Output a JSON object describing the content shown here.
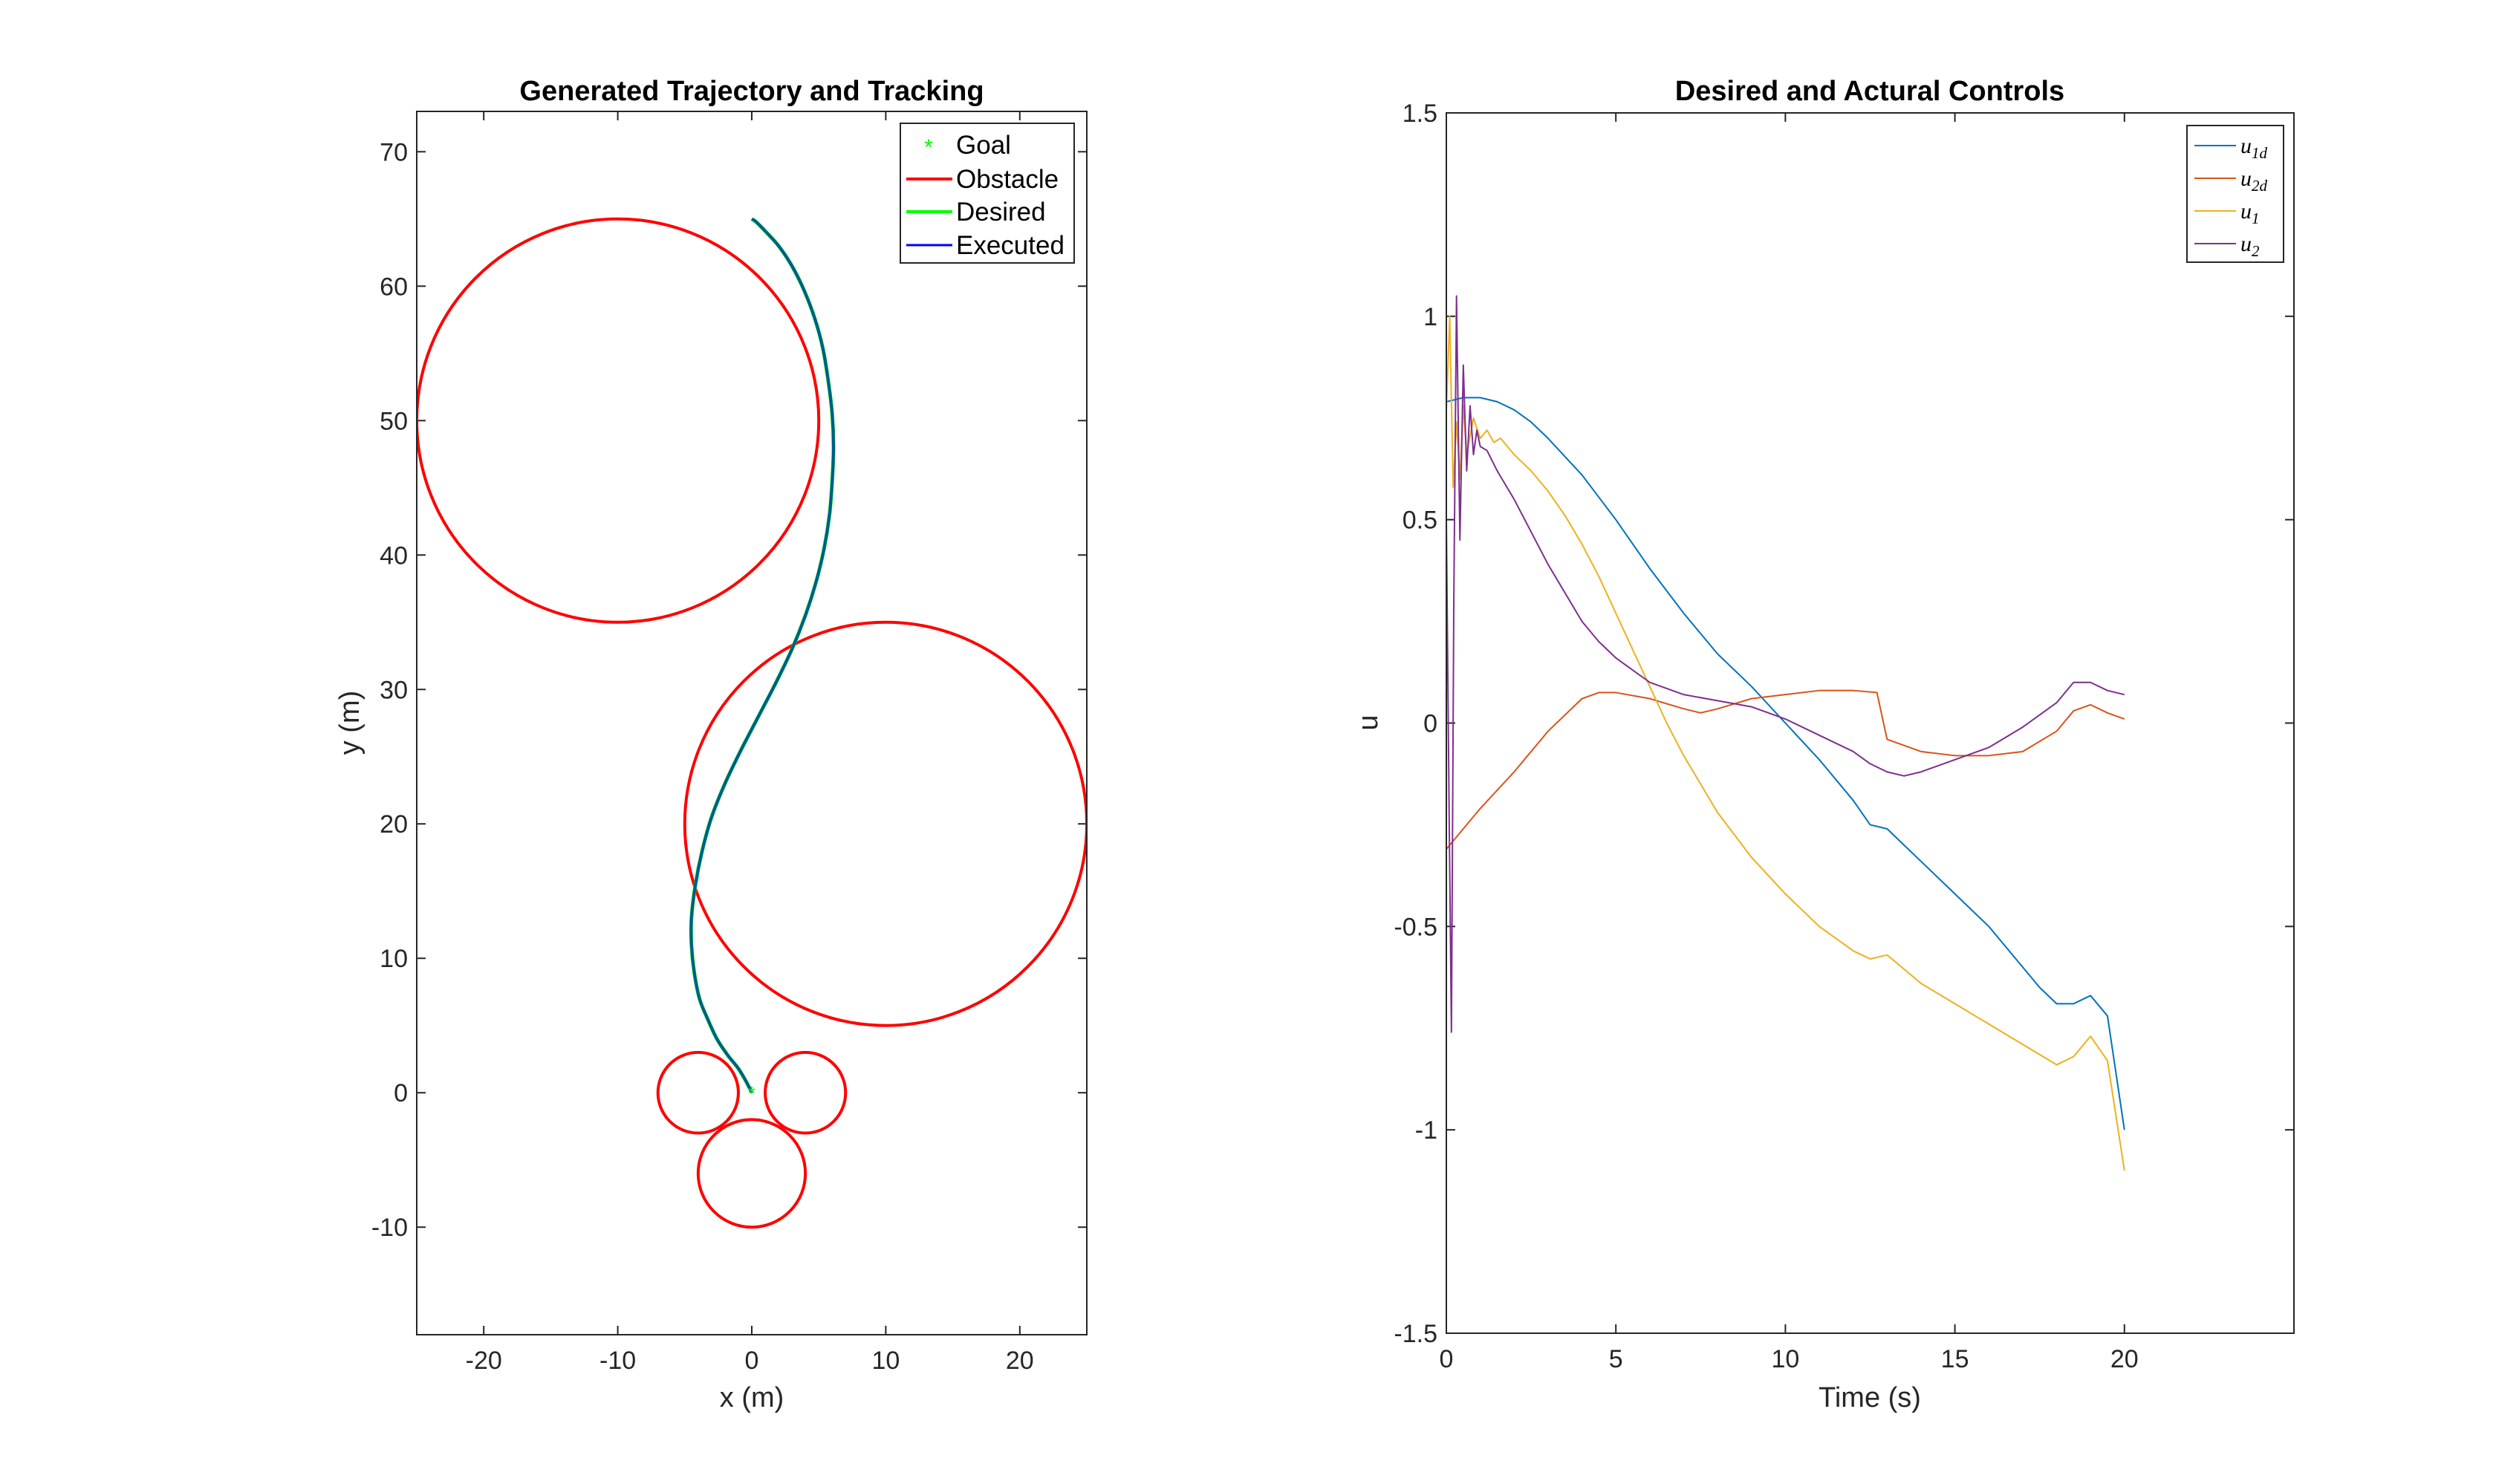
{
  "chart_data": [
    {
      "type": "line",
      "title": "Generated Trajectory and Tracking",
      "xlabel": "x (m)",
      "ylabel": "y (m)",
      "xlim": [
        -25,
        25
      ],
      "ylim": [
        -18,
        73
      ],
      "xticks": [
        -20,
        -10,
        0,
        10,
        20
      ],
      "yticks": [
        -10,
        0,
        10,
        20,
        30,
        40,
        50,
        60,
        70
      ],
      "xtick_labels": [
        "-20",
        "-10",
        "0",
        "10",
        "20"
      ],
      "ytick_labels": [
        "-10",
        "0",
        "10",
        "20",
        "30",
        "40",
        "50",
        "60",
        "70"
      ],
      "grid": false,
      "legend_position": "top-right",
      "legend": [
        "Goal",
        "Obstacle",
        "Desired",
        "Executed"
      ],
      "colors": {
        "goal": "#00ff00",
        "obstacle": "#ff0000",
        "desired": "#00ff00",
        "executed": "#0000ff",
        "overlap": "#005a8f"
      },
      "goal": {
        "x": 0,
        "y": 0
      },
      "obstacles": [
        {
          "cx": -10,
          "cy": 50,
          "r": 15
        },
        {
          "cx": 10,
          "cy": 20,
          "r": 15
        },
        {
          "cx": -4,
          "cy": 0,
          "r": 3
        },
        {
          "cx": 4,
          "cy": 0,
          "r": 3
        },
        {
          "cx": 0,
          "cy": -6,
          "r": 4
        }
      ],
      "series": [
        {
          "name": "Desired",
          "x": [
            0,
            0.3,
            1.0,
            2.0,
            3.0,
            3.9,
            4.7,
            5.3,
            5.7,
            6.0,
            6.1,
            6.0,
            5.8,
            5.4,
            4.8,
            4.0,
            3.0,
            1.8,
            0.5,
            -0.8,
            -2.0,
            -3.0,
            -3.7,
            -4.2,
            -4.5,
            -4.6,
            -4.5,
            -4.3,
            -3.9,
            -3.3,
            -2.6,
            -1.8,
            -1.0,
            -0.4,
            0
          ],
          "y": [
            65,
            64.8,
            64.1,
            63.0,
            61.5,
            59.7,
            57.6,
            55.4,
            53.0,
            50.5,
            48.0,
            45.5,
            43.0,
            40.5,
            38.0,
            35.5,
            33.0,
            30.5,
            28.0,
            25.5,
            23.0,
            20.5,
            18.0,
            15.5,
            13.0,
            20.0,
            11.0,
            9.0,
            7.0,
            5.5,
            4.0,
            2.8,
            1.8,
            0.8,
            0
          ]
        },
        {
          "name": "Executed",
          "x": [
            0,
            0.3,
            1.0,
            2.0,
            3.0,
            3.9,
            4.7,
            5.3,
            5.7,
            6.0,
            6.1,
            6.0,
            5.8,
            5.4,
            4.8,
            4.0,
            3.0,
            1.8,
            0.5,
            -0.8,
            -2.0,
            -3.0,
            -3.7,
            -4.2,
            -4.5,
            -4.6,
            -4.5,
            -4.3,
            -3.9,
            -3.3,
            -2.6,
            -1.8,
            -1.0,
            -0.4,
            0
          ],
          "y": [
            65,
            64.8,
            64.1,
            63.0,
            61.5,
            59.7,
            57.6,
            55.4,
            53.0,
            50.5,
            48.0,
            45.5,
            43.0,
            40.5,
            38.0,
            35.5,
            33.0,
            30.5,
            28.0,
            25.5,
            23.0,
            20.5,
            18.0,
            15.5,
            13.0,
            20.0,
            11.0,
            9.0,
            7.0,
            5.5,
            4.0,
            2.8,
            1.8,
            0.8,
            0
          ]
        }
      ]
    },
    {
      "type": "line",
      "title": "Desired and Actural Controls",
      "xlabel": "Time (s)",
      "ylabel": "u",
      "xlim": [
        0,
        25
      ],
      "ylim": [
        -1.5,
        1.5
      ],
      "xticks": [
        0,
        5,
        10,
        15,
        20
      ],
      "yticks": [
        -1.5,
        -1,
        -0.5,
        0,
        0.5,
        1,
        1.5
      ],
      "xtick_labels": [
        "0",
        "5",
        "10",
        "15",
        "20"
      ],
      "ytick_labels": [
        "-1.5",
        "-1",
        "-0.5",
        "0",
        "0.5",
        "1",
        "1.5"
      ],
      "grid": false,
      "legend_position": "top-right",
      "series": [
        {
          "name": "u1d",
          "legend_main": "u",
          "legend_sub": "1d",
          "color": "#0072bd",
          "x": [
            0,
            0.5,
            1,
            1.5,
            2,
            2.5,
            3,
            4,
            5,
            6,
            7,
            8,
            9,
            10,
            11,
            12,
            12.5,
            13,
            14,
            15,
            16,
            17,
            17.5,
            18,
            18.5,
            19,
            19.5,
            20
          ],
          "y": [
            0.79,
            0.8,
            0.8,
            0.79,
            0.77,
            0.74,
            0.7,
            0.61,
            0.5,
            0.38,
            0.27,
            0.17,
            0.09,
            0.0,
            -0.09,
            -0.19,
            -0.25,
            -0.26,
            -0.34,
            -0.42,
            -0.5,
            -0.6,
            -0.65,
            -0.69,
            -0.69,
            -0.67,
            -0.72,
            -1.0
          ]
        },
        {
          "name": "u2d",
          "legend_main": "u",
          "legend_sub": "2d",
          "color": "#d95319",
          "x": [
            0,
            0.5,
            1,
            2,
            3,
            4,
            4.5,
            5,
            6,
            7,
            7.5,
            8,
            9,
            10,
            11,
            12,
            12.7,
            13,
            14,
            15,
            16,
            17,
            18,
            18.5,
            19,
            19.5,
            20
          ],
          "y": [
            -0.31,
            -0.26,
            -0.21,
            -0.12,
            -0.02,
            0.06,
            0.075,
            0.075,
            0.06,
            0.035,
            0.025,
            0.035,
            0.06,
            0.07,
            0.08,
            0.08,
            0.075,
            -0.04,
            -0.07,
            -0.08,
            -0.08,
            -0.07,
            -0.02,
            0.03,
            0.045,
            0.025,
            0.01
          ]
        },
        {
          "name": "u1",
          "legend_main": "u",
          "legend_sub": "1",
          "color": "#edb120",
          "x": [
            0,
            0.1,
            0.2,
            0.3,
            0.4,
            0.5,
            0.6,
            0.8,
            1.0,
            1.2,
            1.4,
            1.6,
            2,
            2.5,
            3,
            3.5,
            4,
            4.5,
            5,
            5.5,
            6,
            6.5,
            7,
            7.5,
            8,
            9,
            10,
            11,
            12,
            12.5,
            13,
            14,
            15,
            16,
            17,
            18,
            18.5,
            19,
            19.5,
            20
          ],
          "y": [
            0.77,
            1.0,
            0.58,
            0.74,
            0.6,
            0.78,
            0.66,
            0.75,
            0.7,
            0.72,
            0.69,
            0.7,
            0.66,
            0.62,
            0.57,
            0.51,
            0.44,
            0.36,
            0.27,
            0.18,
            0.09,
            0.0,
            -0.08,
            -0.15,
            -0.22,
            -0.33,
            -0.42,
            -0.5,
            -0.56,
            -0.58,
            -0.57,
            -0.64,
            -0.69,
            -0.74,
            -0.79,
            -0.84,
            -0.82,
            -0.77,
            -0.83,
            -1.1
          ]
        },
        {
          "name": "u2",
          "legend_main": "u",
          "legend_sub": "2",
          "color": "#7e2f8e",
          "x": [
            0,
            0.08,
            0.15,
            0.22,
            0.3,
            0.4,
            0.5,
            0.6,
            0.7,
            0.8,
            0.9,
            1.0,
            1.2,
            1.5,
            2,
            2.5,
            3,
            3.5,
            4,
            4.5,
            5,
            5.5,
            6,
            7,
            8,
            9,
            10,
            11,
            12,
            12.5,
            13,
            13.5,
            14,
            15,
            16,
            17,
            18,
            18.5,
            19,
            19.5,
            20
          ],
          "y": [
            0.5,
            -0.2,
            -0.76,
            0.3,
            1.05,
            0.45,
            0.88,
            0.62,
            0.78,
            0.66,
            0.72,
            0.68,
            0.67,
            0.62,
            0.55,
            0.47,
            0.39,
            0.32,
            0.25,
            0.2,
            0.16,
            0.13,
            0.1,
            0.07,
            0.055,
            0.04,
            0.01,
            -0.03,
            -0.07,
            -0.1,
            -0.12,
            -0.13,
            -0.12,
            -0.09,
            -0.06,
            -0.01,
            0.05,
            0.1,
            0.1,
            0.08,
            0.07
          ]
        }
      ]
    }
  ]
}
